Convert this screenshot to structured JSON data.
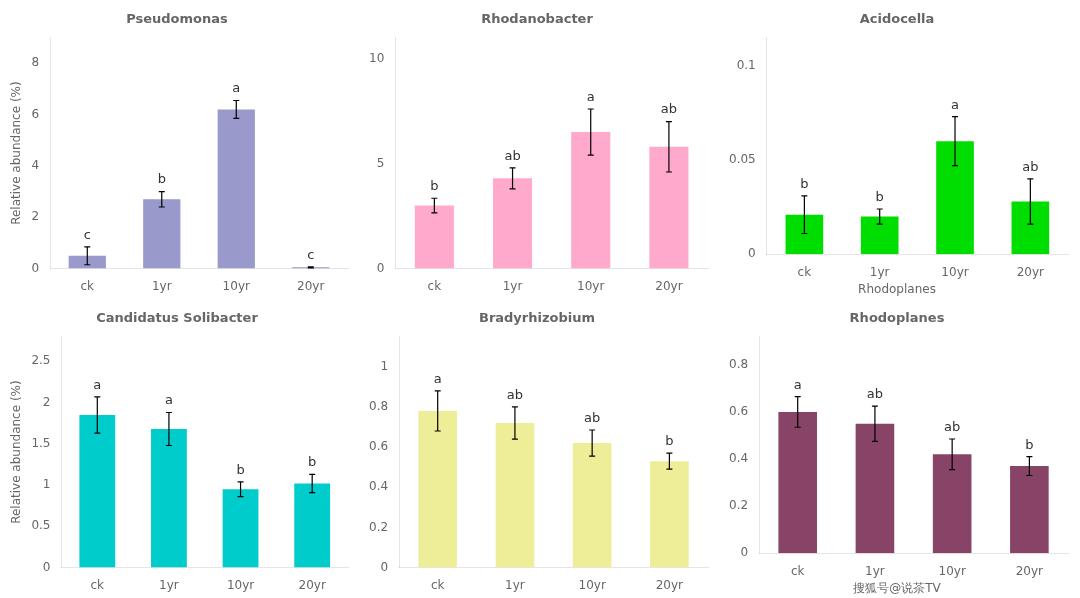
{
  "chart_data": [
    {
      "type": "bar",
      "title": "Pseudomonas",
      "color": "#9999cc",
      "categories": [
        "ck",
        "1yr",
        "10yr",
        "20yr"
      ],
      "values": [
        0.5,
        2.7,
        6.2,
        0.05
      ],
      "errors": [
        0.35,
        0.3,
        0.35,
        0.02
      ],
      "letters": [
        "c",
        "b",
        "a",
        "c"
      ],
      "ylim": [
        0,
        9
      ],
      "yticks": [
        0,
        2,
        4,
        6,
        8
      ],
      "ylabel": "Relative abundance (%)",
      "grid": false
    },
    {
      "type": "bar",
      "title": "Rhodanobacter",
      "color": "#ffaacc",
      "categories": [
        "ck",
        "1yr",
        "10yr",
        "20yr"
      ],
      "values": [
        3.0,
        4.3,
        6.5,
        5.8
      ],
      "errors": [
        0.35,
        0.5,
        1.1,
        1.2
      ],
      "letters": [
        "b",
        "ab",
        "a",
        "ab"
      ],
      "ylim": [
        0,
        11
      ],
      "yticks": [
        0,
        5,
        10
      ],
      "grid": false
    },
    {
      "type": "bar",
      "title": "Acidocella",
      "color": "#00dd00",
      "categories": [
        "ck",
        "1yr",
        "10yr",
        "20yr"
      ],
      "values": [
        0.021,
        0.02,
        0.06,
        0.028
      ],
      "errors": [
        0.01,
        0.004,
        0.013,
        0.012
      ],
      "letters": [
        "b",
        "b",
        "a",
        "ab"
      ],
      "ylim": [
        0,
        0.115
      ],
      "yticks": [
        0,
        0.05,
        0.1
      ],
      "annotations": [
        "Rhodoplanes"
      ],
      "grid": false
    },
    {
      "type": "bar",
      "title": "Candidatus Solibacter",
      "color": "#00cccc",
      "categories": [
        "ck",
        "1yr",
        "10yr",
        "20yr"
      ],
      "values": [
        1.85,
        1.68,
        0.95,
        1.02
      ],
      "errors": [
        0.22,
        0.2,
        0.09,
        0.11
      ],
      "letters": [
        "a",
        "a",
        "b",
        "b"
      ],
      "ylim": [
        0,
        2.8
      ],
      "yticks": [
        0,
        0.5,
        1,
        1.5,
        2,
        2.5
      ],
      "ylabel": "Relative abundance (%)",
      "grid": false
    },
    {
      "type": "bar",
      "title": "Bradyrhizobium",
      "color": "#eeee99",
      "categories": [
        "ck",
        "1yr",
        "10yr",
        "20yr"
      ],
      "values": [
        0.78,
        0.72,
        0.62,
        0.53
      ],
      "errors": [
        0.1,
        0.08,
        0.065,
        0.04
      ],
      "letters": [
        "a",
        "ab",
        "ab",
        "b"
      ],
      "ylim": [
        0,
        1.15
      ],
      "yticks": [
        0,
        0.2,
        0.4,
        0.6,
        0.8,
        1
      ],
      "grid": false
    },
    {
      "type": "bar",
      "title": "Rhodoplanes",
      "color": "#884466",
      "categories": [
        "ck",
        "1yr",
        "10yr",
        "20yr"
      ],
      "values": [
        0.6,
        0.55,
        0.42,
        0.37
      ],
      "errors": [
        0.065,
        0.075,
        0.065,
        0.04
      ],
      "letters": [
        "a",
        "ab",
        "ab",
        "b"
      ],
      "ylim": [
        0,
        0.92
      ],
      "yticks": [
        0,
        0.2,
        0.4,
        0.6,
        0.8
      ],
      "annotations": [
        "搜狐号@说茶TV"
      ],
      "grid": false
    }
  ]
}
